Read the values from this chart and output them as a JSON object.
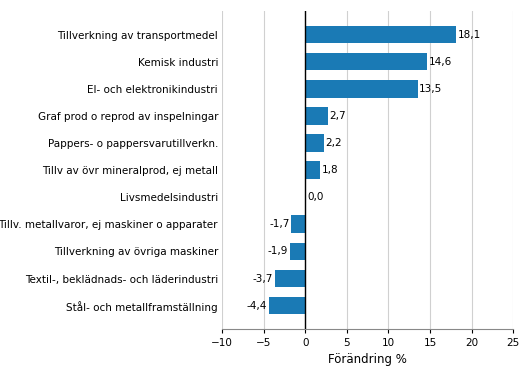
{
  "categories": [
    "Stål- och metallframställning",
    "Textil-, beklädnads- och läderindustri",
    "Tillverkning av övriga maskiner",
    "Tillv. metallvaror, ej maskiner o apparater",
    "Livsmedelsindustri",
    "Tillv av övr mineralprod, ej metall",
    "Pappers- o pappersvarutillverkn.",
    "Graf prod o reprod av inspelningar",
    "El- och elektronikindustri",
    "Kemisk industri",
    "Tillverkning av transportmedel"
  ],
  "values": [
    -4.4,
    -3.7,
    -1.9,
    -1.7,
    0.0,
    1.8,
    2.2,
    2.7,
    13.5,
    14.6,
    18.1
  ],
  "bar_color": "#1a7ab5",
  "xlabel": "Förändring %",
  "xlim": [
    -10,
    25
  ],
  "xticks": [
    -10,
    -5,
    0,
    5,
    10,
    15,
    20,
    25
  ],
  "bar_height": 0.65,
  "label_fontsize": 7.5,
  "xlabel_fontsize": 8.5,
  "value_label_fontsize": 7.5,
  "grid_color": "#d0d0d0",
  "background_color": "#ffffff"
}
